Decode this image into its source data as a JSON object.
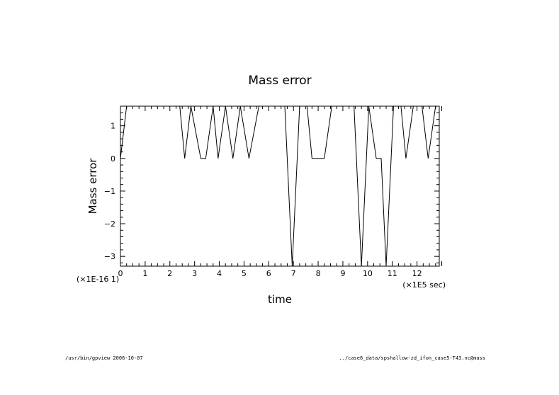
{
  "chart_data": {
    "type": "line",
    "title": "Mass error",
    "xlabel": "time",
    "ylabel": "Mass error",
    "x_multiplier_label": "(×1E5 sec)",
    "y_multiplier_label": "(×1E-16 1)",
    "xlim": [
      0,
      12.9
    ],
    "ylim": [
      -3.3,
      1.6
    ],
    "x_ticks": [
      0,
      1,
      2,
      3,
      4,
      5,
      6,
      7,
      8,
      9,
      10,
      11,
      12
    ],
    "y_ticks": [
      -3,
      -2,
      -1,
      0,
      1
    ],
    "y_tick_labels": [
      "−3",
      "−2",
      "−1",
      "0",
      "1"
    ],
    "grid": false,
    "series": [
      {
        "color": "#000000",
        "x": [
          0.0,
          0.25,
          2.4,
          2.6,
          2.85,
          3.25,
          3.45,
          3.75,
          3.95,
          4.25,
          4.55,
          4.85,
          5.2,
          5.6,
          6.65,
          6.95,
          7.25,
          7.55,
          7.75,
          8.25,
          8.55,
          9.45,
          9.75,
          10.05,
          10.35,
          10.55,
          10.75,
          11.05,
          11.35,
          11.55,
          11.85,
          12.2,
          12.45,
          12.75
        ],
        "y": [
          0.0,
          1.6,
          1.6,
          0.0,
          1.6,
          0.0,
          0.0,
          1.6,
          0.0,
          1.6,
          0.0,
          1.6,
          0.0,
          1.6,
          1.6,
          -3.3,
          1.6,
          1.6,
          0.0,
          0.0,
          1.6,
          1.6,
          -3.3,
          1.6,
          0.0,
          0.0,
          -3.3,
          1.6,
          1.6,
          0.0,
          1.6,
          1.6,
          0.0,
          1.6
        ]
      }
    ]
  },
  "footer": {
    "left": "/usr/bin/gpview  2006-10-07",
    "right": "../case6_data/spshallow-zd_ifon_case5-T43.nc@mass"
  }
}
